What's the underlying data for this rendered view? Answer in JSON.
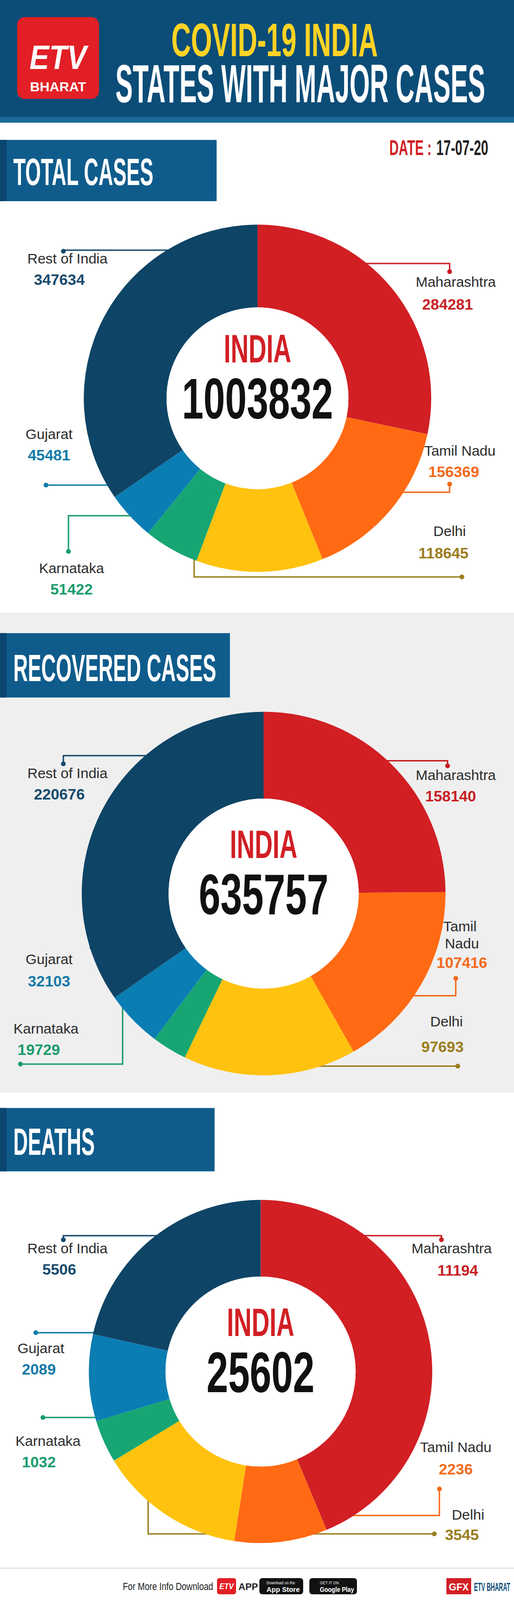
{
  "header": {
    "logo_top": "ETV",
    "logo_bottom": "BHARAT",
    "title": "COVID-19 INDIA",
    "subtitle": "STATES WITH MAJOR CASES"
  },
  "date": {
    "label": "DATE :",
    "value": "17-07-20"
  },
  "chart_data": [
    {
      "type": "donut",
      "title": "TOTAL CASES",
      "center_label": "INDIA",
      "center_value": 1003832,
      "categories": [
        "Maharashtra",
        "Tamil Nadu",
        "Delhi",
        "Karnataka",
        "Gujarat",
        "Rest of India"
      ],
      "values": [
        284281,
        156369,
        118645,
        51422,
        45481,
        347634
      ],
      "colors": [
        "#d11f24",
        "#ff6a13",
        "#ffc20e",
        "#17a673",
        "#0a7db3",
        "#0e4465"
      ],
      "data_labels": true
    },
    {
      "type": "donut",
      "title": "RECOVERED CASES",
      "center_label": "INDIA",
      "center_value": 635757,
      "categories": [
        "Maharashtra",
        "Tamil Nadu",
        "Delhi",
        "Karnataka",
        "Gujarat",
        "Rest of India"
      ],
      "values": [
        158140,
        107416,
        97693,
        19729,
        32103,
        220676
      ],
      "colors": [
        "#d11f24",
        "#ff6a13",
        "#ffc20e",
        "#17a673",
        "#0a7db3",
        "#0e4465"
      ],
      "data_labels": true
    },
    {
      "type": "donut",
      "title": "DEATHS",
      "center_label": "INDIA",
      "center_value": 25602,
      "categories": [
        "Maharashtra",
        "Tamil Nadu",
        "Delhi",
        "Karnataka",
        "Gujarat",
        "Rest of India"
      ],
      "values": [
        11194,
        2236,
        3545,
        1032,
        2089,
        5506
      ],
      "colors": [
        "#d11f24",
        "#ff6a13",
        "#ffc20e",
        "#17a673",
        "#0a7db3",
        "#0e4465"
      ],
      "data_labels": true
    }
  ],
  "footer": {
    "text": "For More Info Download",
    "logo": "ETV",
    "app": "APP",
    "app_store_small": "Download on the",
    "app_store": "App Store",
    "google_play_small": "GET IT ON",
    "google_play": "Google Play",
    "gfx": "GFX",
    "brand": "ETV BHARAT"
  }
}
